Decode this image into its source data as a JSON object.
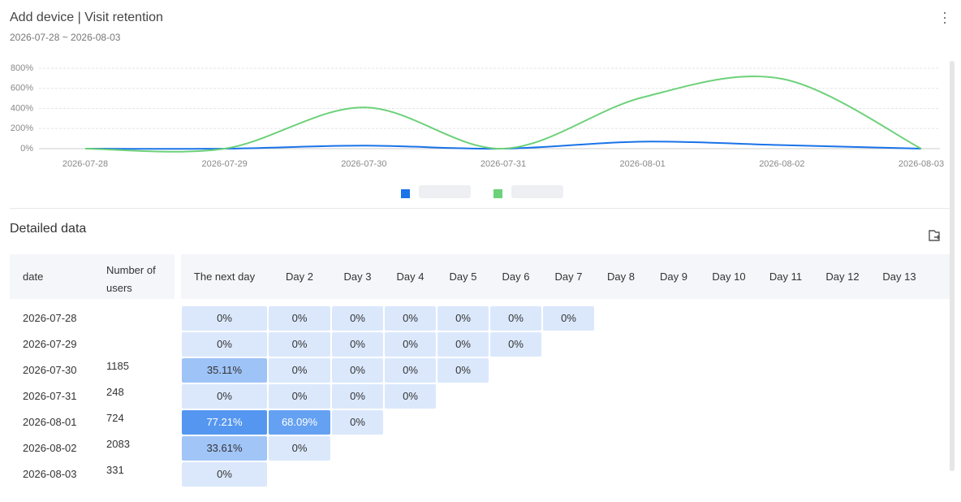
{
  "header": {
    "title": "Add device | Visit retention",
    "date_range": "2026-07-28 ~ 2026-08-03"
  },
  "chart_data": {
    "type": "line",
    "categories": [
      "2026-07-28",
      "2026-07-29",
      "2026-07-30",
      "2026-07-31",
      "2026-08-01",
      "2026-08-02",
      "2026-08-03"
    ],
    "series": [
      {
        "color": "#1a73e8",
        "values": [
          0,
          0,
          30,
          0,
          70,
          35,
          0
        ]
      },
      {
        "color": "#6dd17a",
        "values": [
          0,
          0,
          410,
          0,
          510,
          695,
          0
        ]
      }
    ],
    "ylim": [
      0,
      800
    ],
    "yticks": [
      {
        "value": 0,
        "label": "0%"
      },
      {
        "value": 200,
        "label": "200%"
      },
      {
        "value": 400,
        "label": "400%"
      },
      {
        "value": 600,
        "label": "600%"
      },
      {
        "value": 800,
        "label": "800%"
      }
    ],
    "grid": true,
    "legend": "bottom",
    "smooth": true
  },
  "table": {
    "title": "Detailed data",
    "columns": [
      "date",
      "Number of users",
      "The next day",
      "Day 2",
      "Day 3",
      "Day 4",
      "Day 5",
      "Day 6",
      "Day 7",
      "Day 8",
      "Day 9",
      "Day 10",
      "Day 11",
      "Day 12",
      "Day 13"
    ],
    "rows": [
      {
        "date": "2026-07-28",
        "users": null,
        "cells": [
          "0%",
          "0%",
          "0%",
          "0%",
          "0%",
          "0%",
          "0%"
        ]
      },
      {
        "date": "2026-07-29",
        "users": null,
        "cells": [
          "0%",
          "0%",
          "0%",
          "0%",
          "0%",
          "0%"
        ]
      },
      {
        "date": "2026-07-30",
        "users": "1185",
        "cells": [
          "35.11%",
          "0%",
          "0%",
          "0%",
          "0%"
        ]
      },
      {
        "date": "2026-07-31",
        "users": "248",
        "cells": [
          "0%",
          "0%",
          "0%",
          "0%"
        ]
      },
      {
        "date": "2026-08-01",
        "users": "724",
        "cells": [
          "77.21%",
          "68.09%",
          "0%"
        ]
      },
      {
        "date": "2026-08-02",
        "users": "2083",
        "cells": [
          "33.61%",
          "0%"
        ]
      },
      {
        "date": "2026-08-03",
        "users": "331",
        "cells": [
          "0%"
        ]
      }
    ]
  }
}
